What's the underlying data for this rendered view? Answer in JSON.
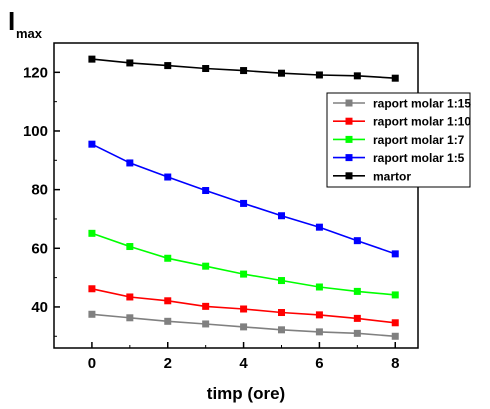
{
  "chart_data": {
    "type": "line",
    "xlabel": "timp (ore)",
    "ylabel_main": "I",
    "ylabel_sub": "max",
    "xlim": [
      -1,
      8.6
    ],
    "ylim": [
      26,
      130
    ],
    "xticks": [
      0,
      2,
      4,
      6,
      8
    ],
    "yticks": [
      40,
      60,
      80,
      100,
      120
    ],
    "grid": false,
    "legend_position": "right",
    "x": [
      0,
      1,
      2,
      3,
      4,
      5,
      6,
      7,
      8
    ],
    "series": [
      {
        "name": "raport molar 1:15",
        "color": "#808080",
        "values": [
          37.5,
          36.3,
          35.1,
          34.2,
          33.2,
          32.2,
          31.5,
          31.0,
          30.0
        ]
      },
      {
        "name": "raport molar 1:10",
        "color": "#ff0000",
        "values": [
          46.2,
          43.4,
          42.1,
          40.2,
          39.3,
          38.1,
          37.3,
          36.1,
          34.6
        ]
      },
      {
        "name": "raport molar 1:7",
        "color": "#00ff00",
        "values": [
          65.1,
          60.6,
          56.6,
          53.9,
          51.2,
          49.0,
          46.8,
          45.3,
          44.1
        ]
      },
      {
        "name": "raport molar 1:5",
        "color": "#0000ff",
        "values": [
          95.5,
          89.1,
          84.3,
          79.7,
          75.3,
          71.1,
          67.2,
          62.6,
          58.1
        ]
      },
      {
        "name": "martor",
        "color": "#000000",
        "values": [
          124.5,
          123.2,
          122.3,
          121.3,
          120.6,
          119.7,
          119.1,
          118.8,
          118.0
        ]
      }
    ]
  }
}
